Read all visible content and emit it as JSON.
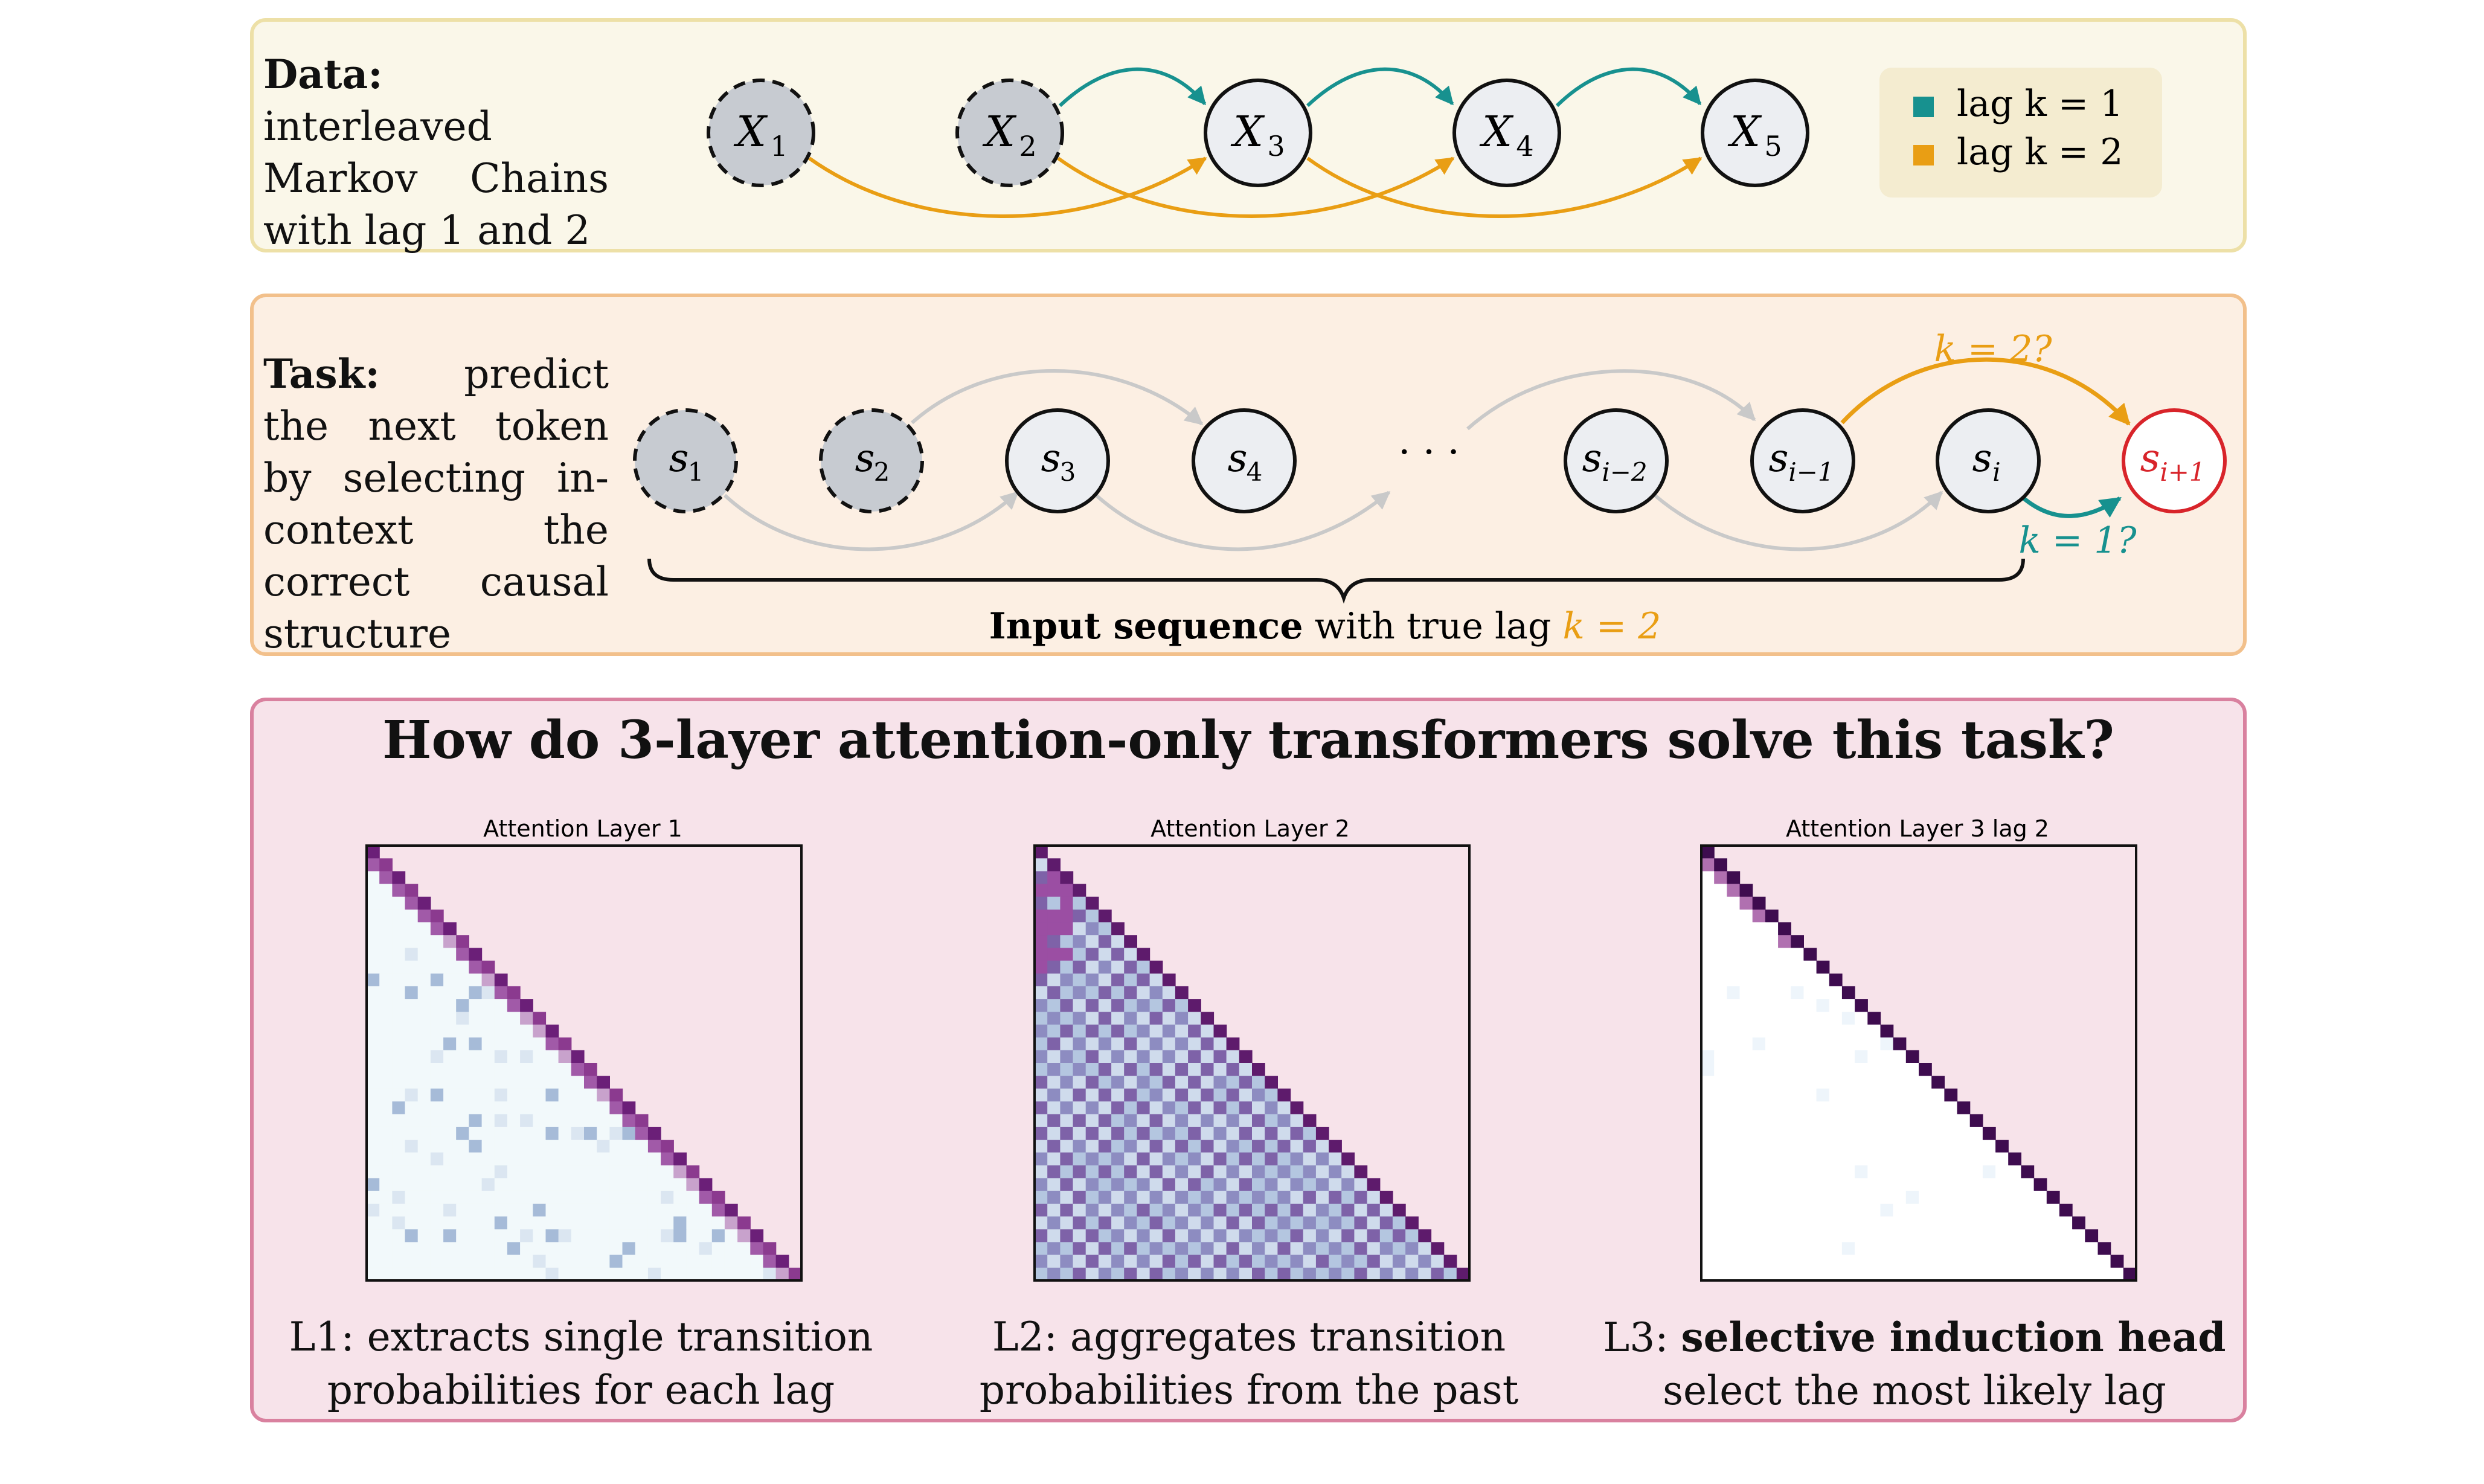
{
  "data_panel": {
    "label": "Data:",
    "text": "interleaved Markov Chains with lag 1 and 2",
    "nodes": [
      "X",
      "X",
      "X",
      "X",
      "X"
    ],
    "subscripts": [
      "1",
      "2",
      "3",
      "4",
      "5"
    ],
    "legend": [
      {
        "label": "lag k = 1",
        "color": "#17918f"
      },
      {
        "label": "lag k = 2",
        "color": "#e99e14"
      }
    ]
  },
  "task_panel": {
    "label": "Task:",
    "text": "predict the next token by selecting in-context the correct causal structure",
    "nodes": [
      {
        "base": "s",
        "sub": "1"
      },
      {
        "base": "s",
        "sub": "2"
      },
      {
        "base": "s",
        "sub": "3"
      },
      {
        "base": "s",
        "sub": "4"
      },
      {
        "base": "s",
        "sub": "i−2"
      },
      {
        "base": "s",
        "sub": "i−1"
      },
      {
        "base": "s",
        "sub": "i"
      },
      {
        "base": "s",
        "sub": "i+1"
      }
    ],
    "ellipsis": "· · ·",
    "k2_label": "k = 2?",
    "k1_label": "k = 1?",
    "brace_bold": "Input sequence",
    "brace_text": "with true lag",
    "brace_value": "k = 2"
  },
  "analysis_panel": {
    "title": "How do 3-layer attention-only transformers solve this task?",
    "heatmaps": [
      {
        "title": "Attention Layer 1",
        "caption_line1": "L1: extracts single transition",
        "caption_line2": "probabilities for each lag",
        "caption_bold": ""
      },
      {
        "title": "Attention Layer 2",
        "caption_line1": "L2: aggregates transition",
        "caption_line2": "probabilities from the past",
        "caption_bold": ""
      },
      {
        "title": "Attention Layer 3 lag 2",
        "caption_line1": "L3: ",
        "caption_line2": "select the most likely lag",
        "caption_bold": "selective induction head"
      }
    ]
  },
  "colors": {
    "teal": "#17918f",
    "orange": "#e99e14",
    "grey_arrow": "#c9c9c9",
    "red": "#d8242a",
    "node_fill": "#c7cbd1",
    "node_light": "#eceef2"
  }
}
